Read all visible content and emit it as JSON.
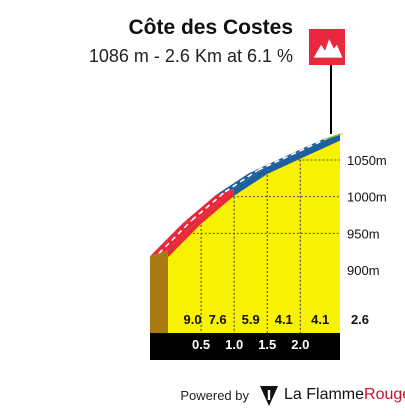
{
  "header": {
    "title": "Côte des Costes",
    "subtitle": "1086 m - 2.6 Km at 6.1 %"
  },
  "footer": {
    "powered_by": "Powered by",
    "brand_la": "La ",
    "brand_flamme": "Flamme",
    "brand_rouge": "Rouge"
  },
  "colors": {
    "road_red": "#e8283c",
    "road_blue": "#1e5fa0",
    "road_green": "#7ed321",
    "fill_yellow": "#f8f200",
    "side_brown": "#a87a10",
    "base_black": "#000000",
    "flag_red": "#e8283c",
    "brand_red": "#c8102e"
  },
  "icons": {
    "flag": "mountain-summit-flag-icon",
    "logo": "la-flamme-rouge-logo-icon"
  },
  "chart_data": {
    "type": "area",
    "distance_ticks": [
      "0.5",
      "1.0",
      "1.5",
      "2.0",
      "2.6"
    ],
    "gradients": [
      "9.0",
      "7.6",
      "5.9",
      "4.1",
      "4.1"
    ],
    "segments": [
      {
        "from_km": 0.0,
        "to_km": 0.5,
        "gradient": 9.0,
        "color": "red"
      },
      {
        "from_km": 0.5,
        "to_km": 1.0,
        "gradient": 7.6,
        "color": "red"
      },
      {
        "from_km": 1.0,
        "to_km": 1.5,
        "gradient": 5.9,
        "color": "blue"
      },
      {
        "from_km": 1.5,
        "to_km": 2.0,
        "gradient": 4.1,
        "color": "blue"
      },
      {
        "from_km": 2.0,
        "to_km": 2.6,
        "gradient": 4.1,
        "color": "blue"
      }
    ],
    "elevation_ticks": [
      {
        "value": 900,
        "label": "900m"
      },
      {
        "value": 950,
        "label": "950m"
      },
      {
        "value": 1000,
        "label": "1000m"
      },
      {
        "value": 1050,
        "label": "1050m"
      }
    ],
    "start_elevation": 927,
    "summit_elevation": 1086,
    "total_km": 2.6,
    "grid": true
  }
}
